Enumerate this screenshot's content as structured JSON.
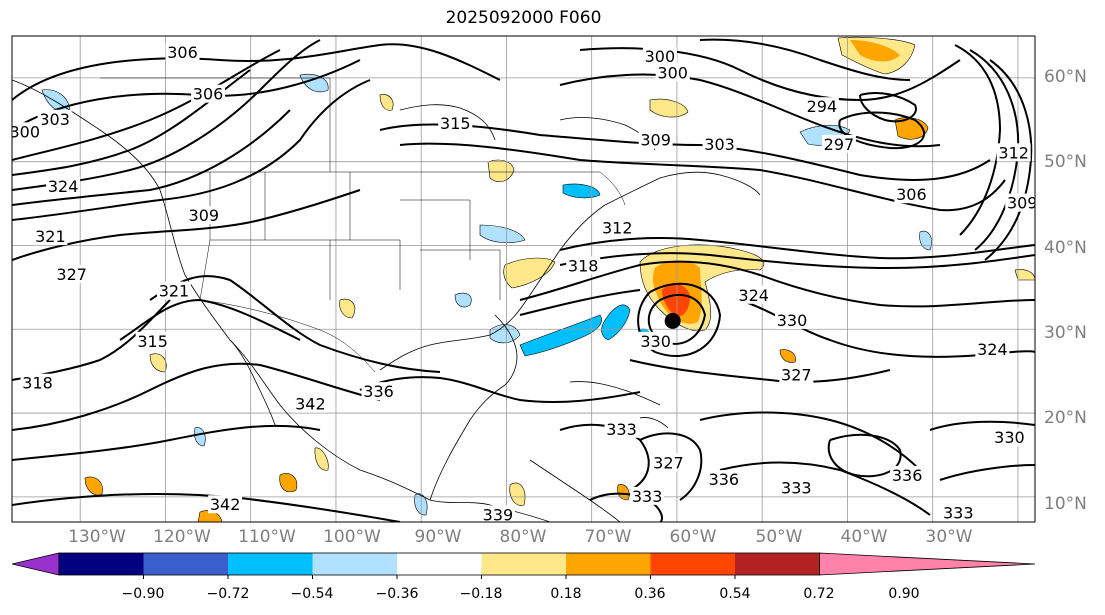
{
  "title": "2025092000 F060",
  "map": {
    "projection": "lat-lon",
    "lon_range": [
      -138,
      -18
    ],
    "lat_range": [
      7,
      65
    ],
    "latitude_labels": [
      "60°N",
      "50°N",
      "40°N",
      "30°N",
      "20°N",
      "10°N"
    ],
    "longitude_labels": [
      "130°W",
      "120°W",
      "110°W",
      "100°W",
      "90°W",
      "80°W",
      "70°W",
      "60°W",
      "50°W",
      "40°W",
      "30°W"
    ],
    "contour_labels": [
      {
        "text": "306",
        "lon": -118,
        "lat": 63
      },
      {
        "text": "306",
        "lon": -115,
        "lat": 58
      },
      {
        "text": "300",
        "lon": -62,
        "lat": 62.5
      },
      {
        "text": "300",
        "lon": -60.5,
        "lat": 60.5
      },
      {
        "text": "294",
        "lon": -43,
        "lat": 56.5
      },
      {
        "text": "297",
        "lon": -41,
        "lat": 52
      },
      {
        "text": "315",
        "lon": -86,
        "lat": 54.5
      },
      {
        "text": "309",
        "lon": -62.5,
        "lat": 52.5
      },
      {
        "text": "303",
        "lon": -55,
        "lat": 52
      },
      {
        "text": "312",
        "lon": -20.5,
        "lat": 51
      },
      {
        "text": "309",
        "lon": -19.5,
        "lat": 45
      },
      {
        "text": "306",
        "lon": -32.5,
        "lat": 46
      },
      {
        "text": "303",
        "lon": -133,
        "lat": 55
      },
      {
        "text": "300",
        "lon": -136.5,
        "lat": 53.5
      },
      {
        "text": "324",
        "lon": -132,
        "lat": 47
      },
      {
        "text": "309",
        "lon": -115.5,
        "lat": 43.5
      },
      {
        "text": "321",
        "lon": -133.5,
        "lat": 41
      },
      {
        "text": "327",
        "lon": -131,
        "lat": 36.5
      },
      {
        "text": "321",
        "lon": -119,
        "lat": 34.5
      },
      {
        "text": "315",
        "lon": -121.5,
        "lat": 28.5
      },
      {
        "text": "318",
        "lon": -135,
        "lat": 23.5
      },
      {
        "text": "318",
        "lon": -71,
        "lat": 37.5
      },
      {
        "text": "312",
        "lon": -67,
        "lat": 42
      },
      {
        "text": "324",
        "lon": -51,
        "lat": 34
      },
      {
        "text": "330",
        "lon": -46.5,
        "lat": 31
      },
      {
        "text": "330",
        "lon": -62.5,
        "lat": 28.5
      },
      {
        "text": "324",
        "lon": -23,
        "lat": 27.5
      },
      {
        "text": "327",
        "lon": -46,
        "lat": 24.5
      },
      {
        "text": "336",
        "lon": -95,
        "lat": 22.5
      },
      {
        "text": "342",
        "lon": -103,
        "lat": 21
      },
      {
        "text": "333",
        "lon": -66.5,
        "lat": 18
      },
      {
        "text": "330",
        "lon": -21,
        "lat": 17
      },
      {
        "text": "327",
        "lon": -61,
        "lat": 14
      },
      {
        "text": "336",
        "lon": -33,
        "lat": 12.5
      },
      {
        "text": "333",
        "lon": -46,
        "lat": 11
      },
      {
        "text": "336",
        "lon": -54.5,
        "lat": 12
      },
      {
        "text": "333",
        "lon": -63.5,
        "lat": 10
      },
      {
        "text": "342",
        "lon": -113,
        "lat": 9
      },
      {
        "text": "333",
        "lon": -27,
        "lat": 8
      },
      {
        "text": "339",
        "lon": -81,
        "lat": 7.8
      }
    ],
    "storm_center": {
      "lon": -60.5,
      "lat": 31
    }
  },
  "colorbar": {
    "tick_labels": [
      "−0.90",
      "−0.72",
      "−0.54",
      "−0.36",
      "−0.18",
      "0.18",
      "0.36",
      "0.54",
      "0.72",
      "0.90"
    ],
    "colors": [
      "#9932cc",
      "#000080",
      "#3a5fcd",
      "#00bfff",
      "#b0e2ff",
      "#ffffff",
      "#ffe88a",
      "#ffa500",
      "#ff4500",
      "#b22222",
      "#ff82ab"
    ]
  }
}
